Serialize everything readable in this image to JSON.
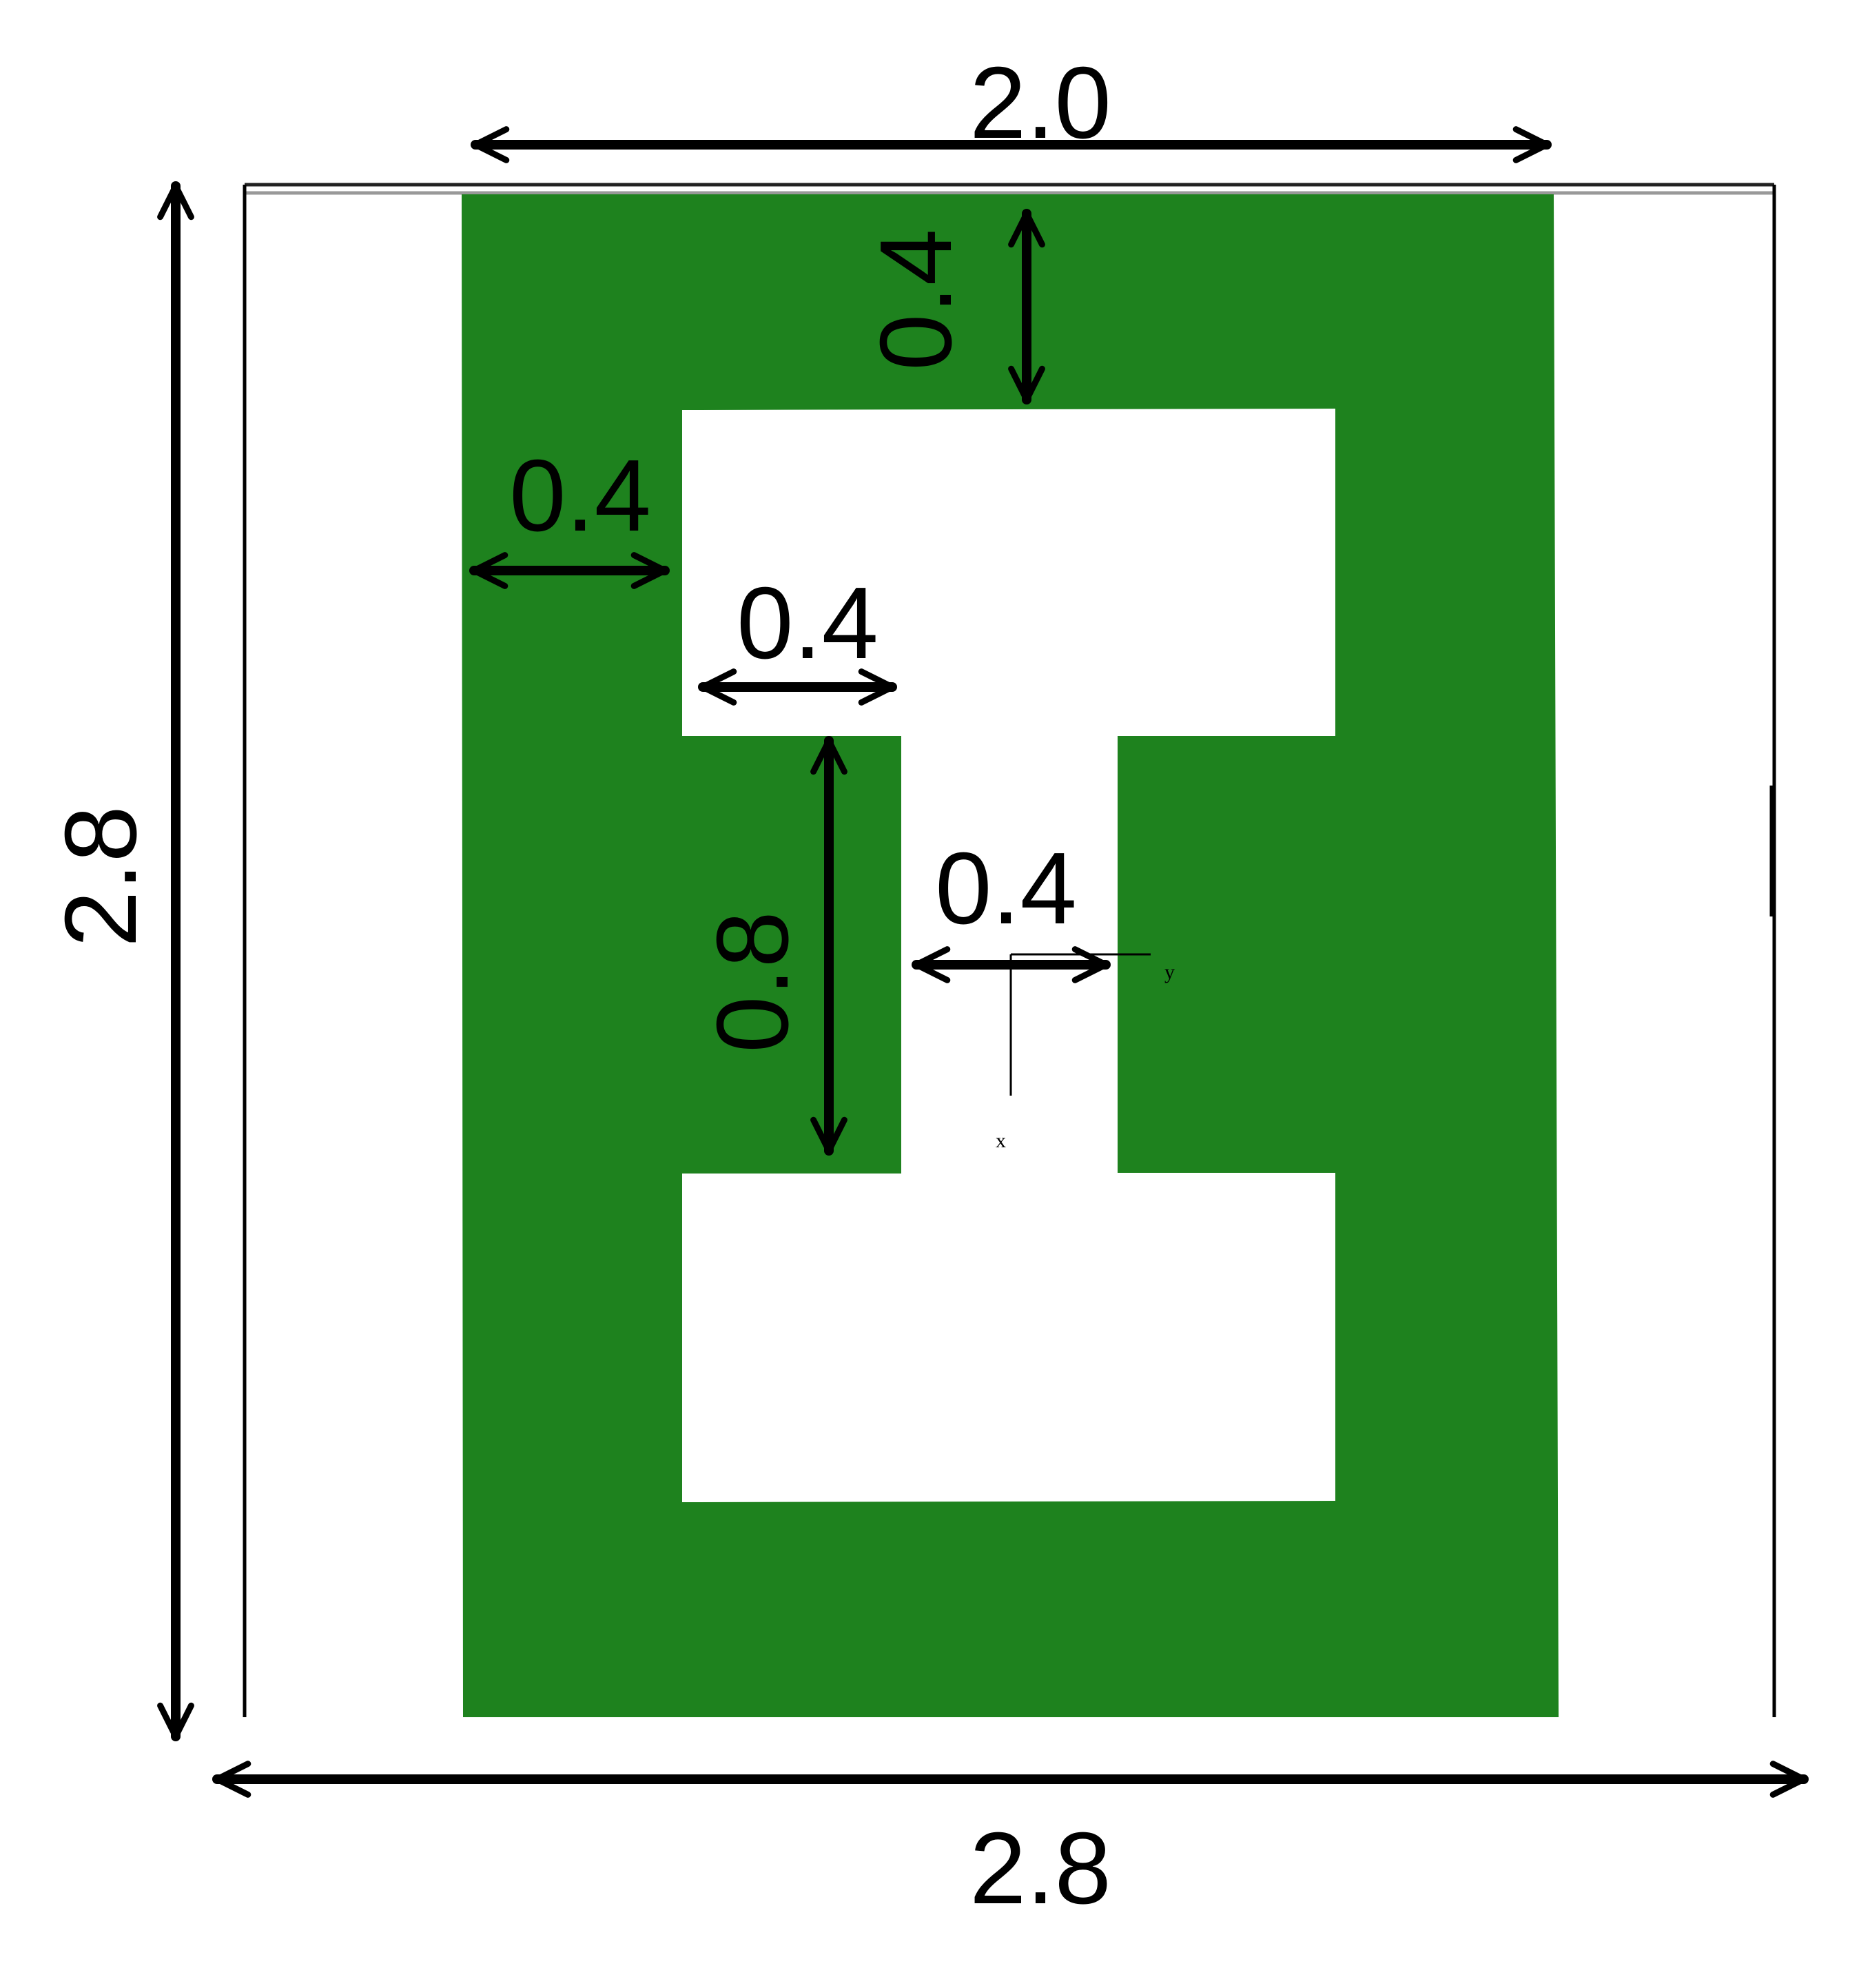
{
  "colors": {
    "patch": "#1e821e",
    "background": "#ffffff",
    "outline": "#000000"
  },
  "dimensions": {
    "top_width": "2.0",
    "top_gap": "0.4",
    "left_gap": "0.4",
    "inner_offset": "0.4",
    "neck_height": "0.8",
    "neck_width": "0.4",
    "left_height": "2.8",
    "bottom_width": "2.8"
  },
  "axes": {
    "x": "x",
    "y": "y"
  }
}
